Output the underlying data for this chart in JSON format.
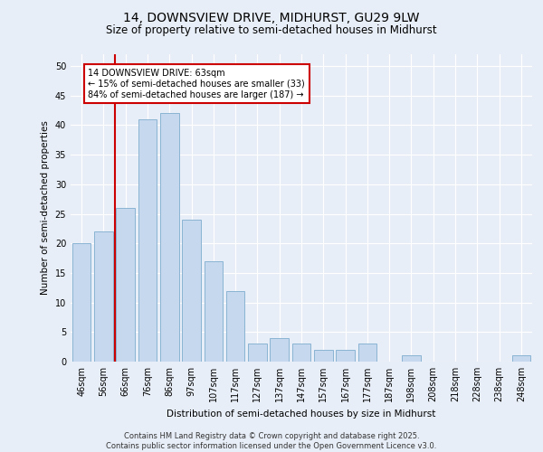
{
  "title1": "14, DOWNSVIEW DRIVE, MIDHURST, GU29 9LW",
  "title2": "Size of property relative to semi-detached houses in Midhurst",
  "xlabel": "Distribution of semi-detached houses by size in Midhurst",
  "ylabel": "Number of semi-detached properties",
  "categories": [
    "46sqm",
    "56sqm",
    "66sqm",
    "76sqm",
    "86sqm",
    "97sqm",
    "107sqm",
    "117sqm",
    "127sqm",
    "137sqm",
    "147sqm",
    "157sqm",
    "167sqm",
    "177sqm",
    "187sqm",
    "198sqm",
    "208sqm",
    "218sqm",
    "228sqm",
    "238sqm",
    "248sqm"
  ],
  "values": [
    20,
    22,
    26,
    41,
    42,
    24,
    17,
    12,
    3,
    4,
    3,
    2,
    2,
    3,
    0,
    1,
    0,
    0,
    0,
    0,
    1
  ],
  "bar_color": "#c5d8ed",
  "bar_edge_color": "#8ab4d4",
  "highlight_line_color": "#cc0000",
  "annotation_text": "14 DOWNSVIEW DRIVE: 63sqm\n← 15% of semi-detached houses are smaller (33)\n84% of semi-detached houses are larger (187) →",
  "annotation_box_color": "#ffffff",
  "annotation_box_edge": "#cc0000",
  "ylim": [
    0,
    52
  ],
  "yticks": [
    0,
    5,
    10,
    15,
    20,
    25,
    30,
    35,
    40,
    45,
    50
  ],
  "background_color": "#e8eef7",
  "plot_background_color": "#e8eef7",
  "footer1": "Contains HM Land Registry data © Crown copyright and database right 2025.",
  "footer2": "Contains public sector information licensed under the Open Government Licence v3.0.",
  "title_fontsize": 10,
  "subtitle_fontsize": 8.5,
  "axis_label_fontsize": 7.5,
  "tick_fontsize": 7,
  "annotation_fontsize": 7,
  "footer_fontsize": 6
}
